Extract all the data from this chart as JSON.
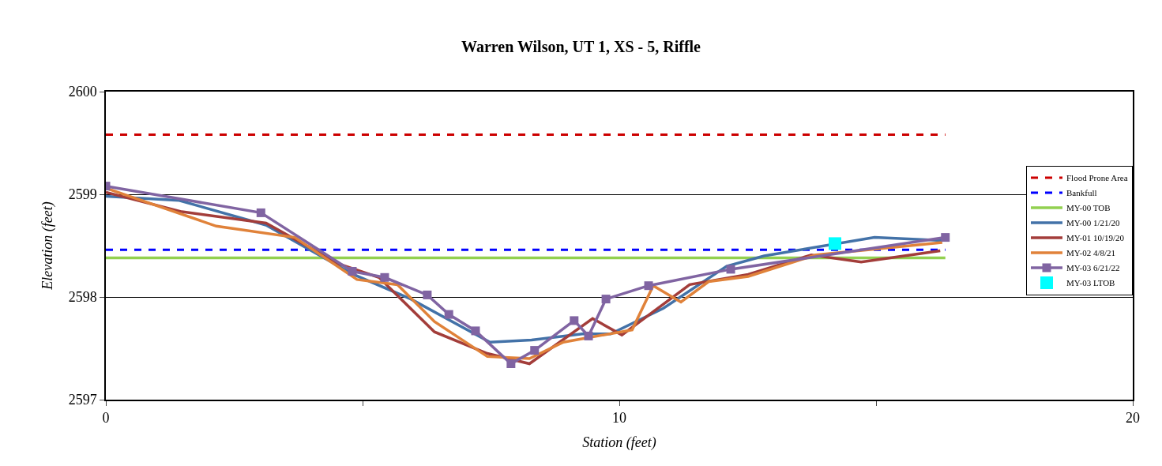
{
  "chart_data": {
    "type": "line",
    "title": "Warren Wilson, UT 1, XS - 5, Riffle",
    "xlabel": "Station (feet)",
    "ylabel": "Elevation (feet)",
    "xlim": [
      0,
      20
    ],
    "xticks": [
      0,
      {
        "value": 5,
        "label": null
      },
      10,
      {
        "value": 15,
        "label": null
      },
      20
    ],
    "ylim": [
      2597,
      2600
    ],
    "yticks": [
      2597,
      2598,
      2599,
      2600
    ],
    "grid": "y",
    "legend": "right",
    "series": [
      {
        "name": "Flood Prone Area",
        "color": "#cc0000",
        "line_style": "dashed",
        "marker": "none",
        "x": [
          0,
          16.35
        ],
        "values": [
          2599.58,
          2599.58
        ]
      },
      {
        "name": "Bankfull",
        "color": "#0000ff",
        "line_style": "dashed",
        "marker": "none",
        "x": [
          0,
          16.35
        ],
        "values": [
          2598.46,
          2598.46
        ]
      },
      {
        "name": "MY-00 TOB",
        "color": "#92d050",
        "line_style": "solid",
        "marker": "none",
        "x": [
          0,
          16.35
        ],
        "values": [
          2598.38,
          2598.38
        ]
      },
      {
        "name": "MY-00 1/21/20",
        "color": "#4372a8",
        "line_style": "solid",
        "marker": "none",
        "x": [
          0,
          1.43,
          3.12,
          4.82,
          5.94,
          7.48,
          8.29,
          9.28,
          9.83,
          10.86,
          12.09,
          12.82,
          14.97,
          16.29
        ],
        "values": [
          2598.98,
          2598.94,
          2598.7,
          2598.22,
          2597.98,
          2597.56,
          2597.58,
          2597.64,
          2597.64,
          2597.89,
          2598.3,
          2598.4,
          2598.58,
          2598.55
        ]
      },
      {
        "name": "MY-01 10/19/20",
        "color": "#a33d3a",
        "line_style": "solid",
        "marker": "none",
        "x": [
          0,
          1.48,
          3.12,
          4.55,
          5.32,
          6.4,
          7.43,
          8.25,
          9.48,
          10.05,
          11.37,
          12.51,
          13.74,
          14.71,
          16.25
        ],
        "values": [
          2599.02,
          2598.83,
          2598.72,
          2598.32,
          2598.19,
          2597.66,
          2597.45,
          2597.35,
          2597.79,
          2597.63,
          2598.12,
          2598.22,
          2598.41,
          2598.34,
          2598.45
        ]
      },
      {
        "name": "MY-02 4/8/21",
        "color": "#e0823a",
        "line_style": "solid",
        "marker": "none",
        "x": [
          0,
          2.15,
          3.68,
          4.89,
          5.68,
          6.4,
          7.43,
          8.25,
          8.91,
          10.25,
          10.66,
          11.2,
          11.74,
          12.51,
          13.83,
          16.29
        ],
        "values": [
          2599.06,
          2598.69,
          2598.58,
          2598.17,
          2598.12,
          2597.76,
          2597.42,
          2597.4,
          2597.56,
          2597.68,
          2598.11,
          2597.95,
          2598.15,
          2598.2,
          2598.41,
          2598.53
        ]
      },
      {
        "name": "MY-03 6/21/22",
        "color": "#8064a2",
        "line_style": "solid",
        "marker": "square",
        "x": [
          0,
          3.02,
          4.8,
          5.43,
          6.26,
          6.68,
          7.2,
          7.89,
          8.35,
          9.12,
          9.4,
          9.74,
          10.57,
          12.17,
          16.35
        ],
        "values": [
          2599.08,
          2598.82,
          2598.25,
          2598.19,
          2598.02,
          2597.83,
          2597.67,
          2597.35,
          2597.48,
          2597.77,
          2597.62,
          2597.98,
          2598.11,
          2598.27,
          2598.58
        ]
      },
      {
        "name": "MY-03 LTOB",
        "type": "scatter",
        "color": "#00ffff",
        "marker": "square",
        "x": [
          14.2
        ],
        "values": [
          2598.52
        ]
      }
    ]
  }
}
